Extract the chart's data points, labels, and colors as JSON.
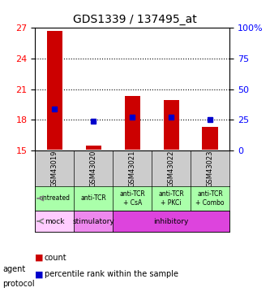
{
  "title": "GDS1339 / 137495_at",
  "samples": [
    "GSM43019",
    "GSM43020",
    "GSM43021",
    "GSM43022",
    "GSM43023"
  ],
  "bar_bottoms": [
    15.1,
    15.1,
    15.1,
    15.1,
    15.1
  ],
  "bar_tops": [
    26.7,
    15.5,
    20.3,
    19.9,
    17.3
  ],
  "percentile_y": [
    19.1,
    17.9,
    18.3,
    18.3,
    18.0
  ],
  "ylim": [
    15,
    27
  ],
  "yticks_left": [
    15,
    18,
    21,
    24,
    27
  ],
  "yticks_right": [
    0,
    25,
    50,
    75,
    100
  ],
  "ytick_right_labels": [
    "0",
    "25",
    "50",
    "75",
    "100%"
  ],
  "bar_color": "#cc0000",
  "percentile_color": "#0000cc",
  "agent_labels": [
    "untreated",
    "anti-TCR",
    "anti-TCR\n+ CsA",
    "anti-TCR\n+ PKCi",
    "anti-TCR\n+ Combo"
  ],
  "protocol_labels_groups": [
    {
      "label": "mock",
      "span": [
        0,
        1
      ]
    },
    {
      "label": "stimulatory",
      "span": [
        1,
        2
      ]
    },
    {
      "label": "inhibitory",
      "span": [
        2,
        5
      ]
    }
  ],
  "agent_bg_color": "#aaffaa",
  "protocol_mock_color": "#ff88ff",
  "protocol_stim_color": "#ee88ee",
  "protocol_inhib_color": "#ee44ee",
  "sample_header_color": "#cccccc",
  "legend_count_color": "#cc0000",
  "legend_pct_color": "#0000cc",
  "group_colors": [
    "#ccffcc",
    "#ccffcc",
    "#ccffcc"
  ]
}
